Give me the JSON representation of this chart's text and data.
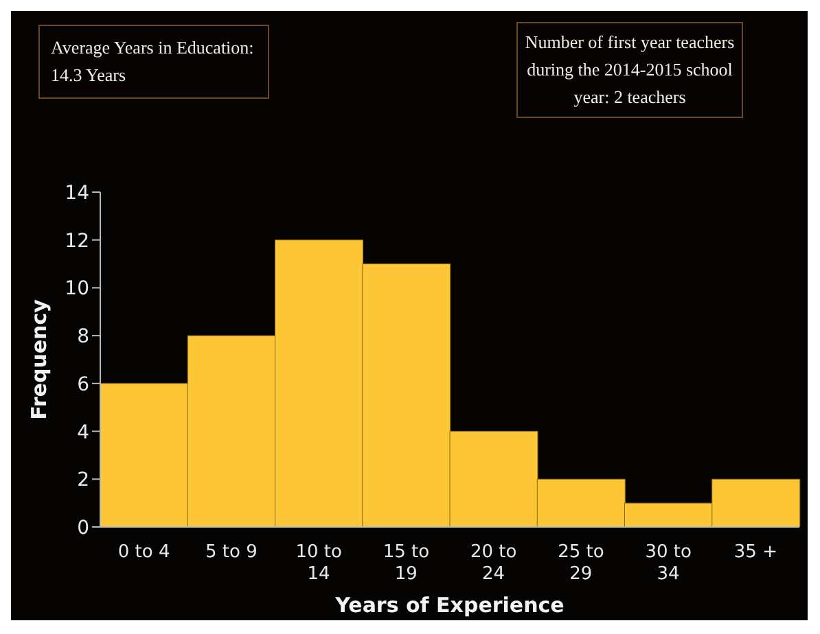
{
  "chart_data": {
    "type": "bar",
    "xlabel": "Years of Experience",
    "ylabel": "Frequency",
    "categories": [
      "0 to 4",
      "5 to 9",
      "10 to 14",
      "15 to 19",
      "20 to 24",
      "25 to 29",
      "30 to 34",
      "35 +"
    ],
    "values": [
      6,
      8,
      12,
      11,
      4,
      2,
      1,
      2
    ],
    "color": "#fcc637",
    "ylim": [
      0,
      14
    ],
    "yticks": [
      0,
      2,
      4,
      6,
      8,
      10,
      12,
      14
    ],
    "grid": false,
    "annotations": [
      "Average Years in Education: 14.3 Years",
      "Number of first year teachers during the 2014-2015 school year: 2 teachers"
    ]
  }
}
